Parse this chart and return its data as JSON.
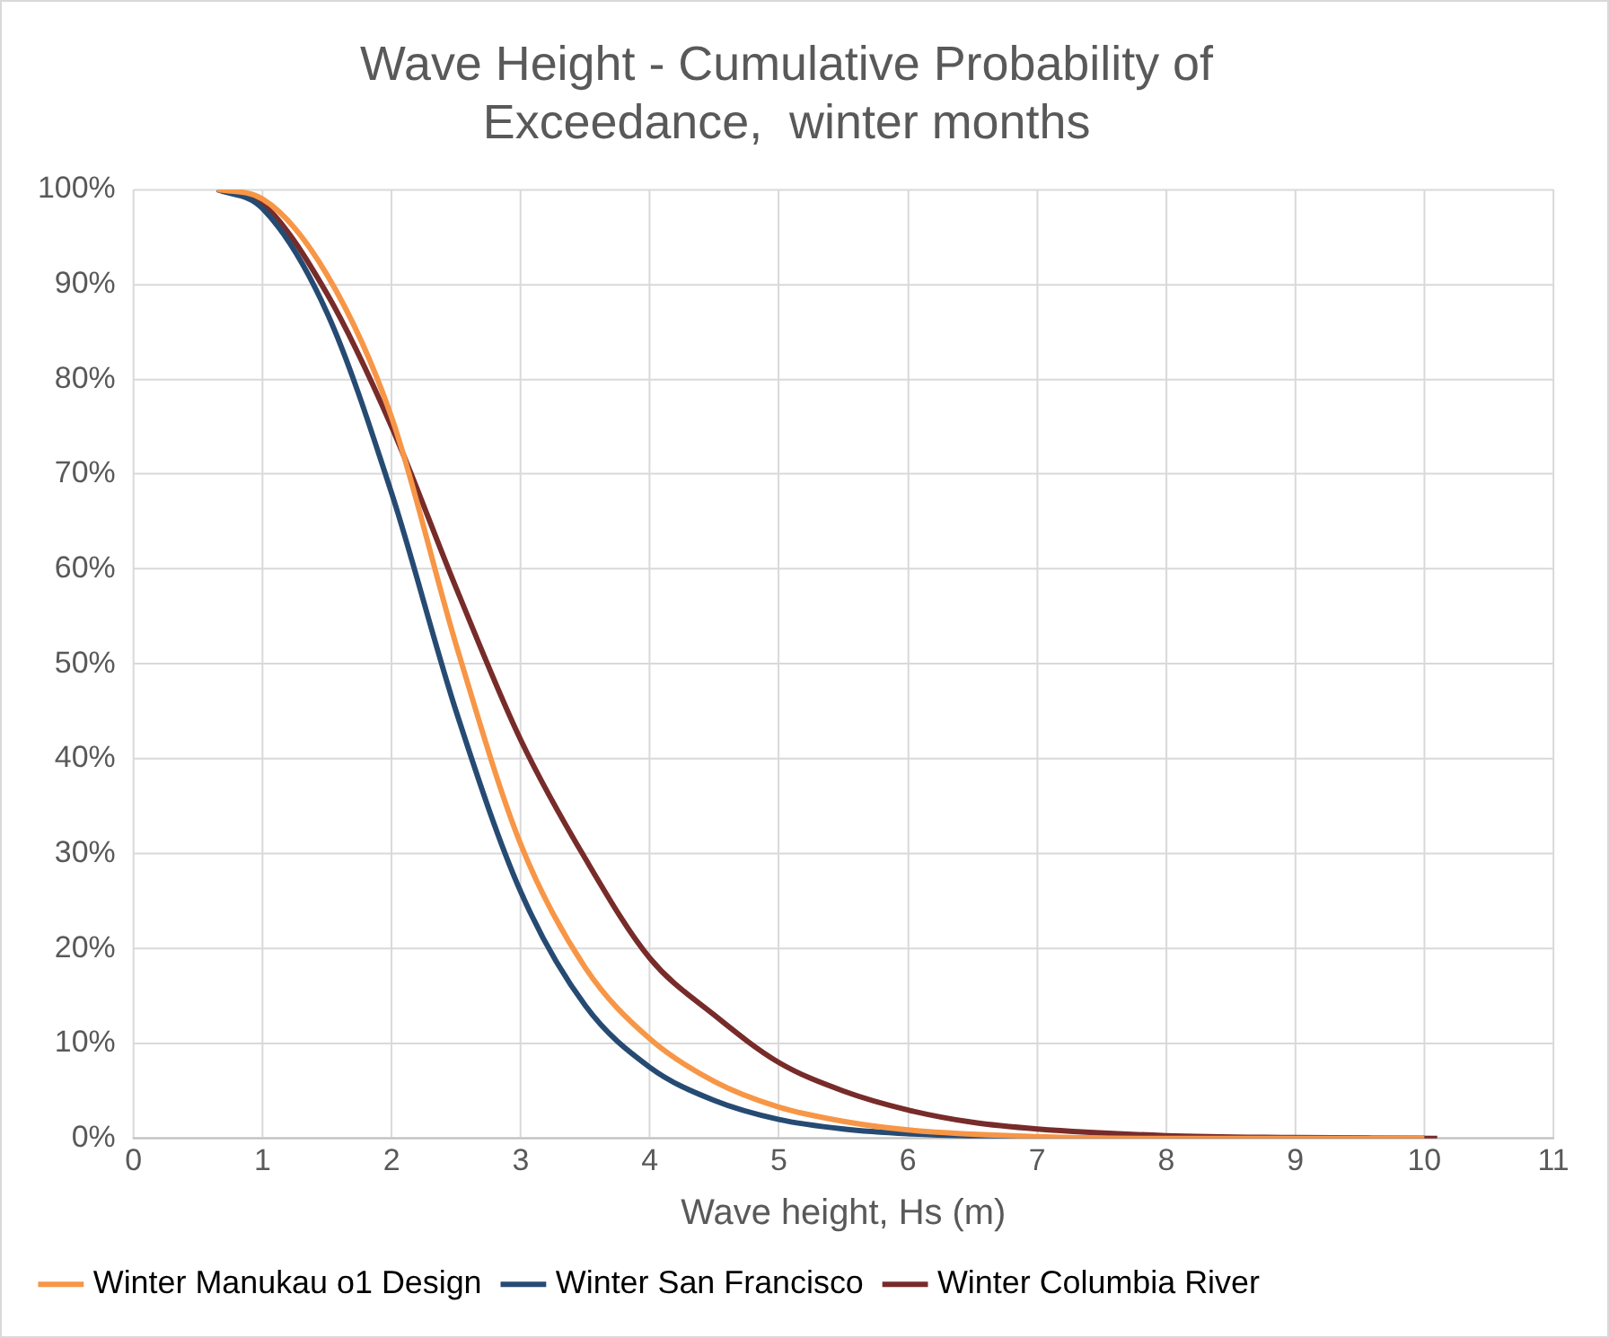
{
  "chart_data": {
    "type": "line",
    "title": [
      "Wave Height - Cumulative Probability of",
      "Exceedance,  winter months"
    ],
    "xlabel": "Wave height, Hs (m)",
    "xlim": [
      0,
      11
    ],
    "xticks": [
      0,
      1,
      2,
      3,
      4,
      5,
      6,
      7,
      8,
      9,
      10,
      11
    ],
    "ylim": [
      0,
      100
    ],
    "yticks": [
      {
        "value": 0,
        "label": "0%"
      },
      {
        "value": 10,
        "label": "10%"
      },
      {
        "value": 20,
        "label": "20%"
      },
      {
        "value": 30,
        "label": "30%"
      },
      {
        "value": 40,
        "label": "40%"
      },
      {
        "value": 50,
        "label": "50%"
      },
      {
        "value": 60,
        "label": "60%"
      },
      {
        "value": 70,
        "label": "70%"
      },
      {
        "value": 80,
        "label": "80%"
      },
      {
        "value": 90,
        "label": "90%"
      },
      {
        "value": 100,
        "label": "100%"
      }
    ],
    "grid": true,
    "legend": "bottom",
    "marker": "none",
    "line_style": "solid",
    "series": [
      {
        "name": "Winter Manukau o1 Design",
        "color": "#f79646",
        "x": [
          0.65,
          1,
          1.5,
          2,
          2.5,
          3,
          3.5,
          4,
          4.5,
          5,
          5.5,
          6,
          7,
          8,
          10
        ],
        "values": [
          100,
          99,
          91,
          76,
          52,
          31,
          18,
          10.5,
          6,
          3.3,
          1.8,
          0.9,
          0.2,
          0,
          0
        ]
      },
      {
        "name": "Winter San Francisco",
        "color": "#264b73",
        "x": [
          0.65,
          1,
          1.5,
          2,
          2.5,
          3,
          3.5,
          4,
          4.5,
          5,
          5.5,
          6,
          7,
          8,
          10
        ],
        "values": [
          100,
          98,
          87,
          68,
          45,
          26,
          14,
          7.5,
          4,
          2,
          1,
          0.5,
          0.1,
          0,
          0
        ]
      },
      {
        "name": "Winter Columbia River",
        "color": "#772c2a",
        "x": [
          0.65,
          1,
          1.5,
          2,
          2.5,
          3,
          3.5,
          4,
          4.5,
          5,
          5.5,
          6,
          6.5,
          7,
          8,
          9,
          10.1
        ],
        "values": [
          100,
          98.5,
          89,
          75,
          58,
          42,
          29.5,
          19,
          13,
          8,
          5,
          3,
          1.7,
          1,
          0.3,
          0.1,
          0
        ]
      }
    ]
  }
}
